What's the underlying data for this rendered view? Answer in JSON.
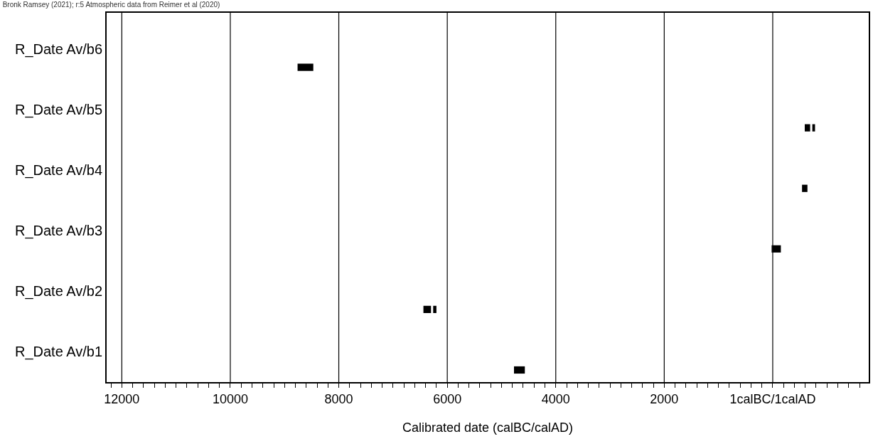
{
  "chart_data": {
    "type": "bar",
    "orientation": "horizontal",
    "title": "Bronk Ramsey (2021); r:5 Atmospheric data from Reimer et al (2020)",
    "xlabel": "Calibrated date (calBC/calAD)",
    "categories": [
      "R_Date Av/b6",
      "R_Date Av/b5",
      "R_Date Av/b4",
      "R_Date Av/b3",
      "R_Date Av/b2",
      "R_Date Av/b1"
    ],
    "series": [
      {
        "color": "#000000",
        "base": [
          8470,
          -690,
          -640,
          -150,
          6300,
          4570
        ],
        "values": [
          290,
          100,
          100,
          170,
          140,
          200
        ]
      },
      {
        "color": "#000000",
        "base": [
          null,
          -780,
          null,
          null,
          6200,
          null
        ],
        "values": [
          null,
          50,
          null,
          null,
          60,
          null
        ]
      }
    ],
    "xlim": [
      12280,
      -1770
    ],
    "xticks": [
      12000,
      10000,
      8000,
      6000,
      4000,
      2000,
      {
        "value": 0,
        "label": "1calBC/1calAD"
      },
      {
        "value": 12200,
        "label": null
      },
      {
        "value": 11800,
        "label": null
      },
      {
        "value": 11600,
        "label": null
      },
      {
        "value": 11400,
        "label": null
      },
      {
        "value": 11200,
        "label": null
      },
      {
        "value": 11000,
        "label": null
      },
      {
        "value": 10800,
        "label": null
      },
      {
        "value": 10600,
        "label": null
      },
      {
        "value": 10400,
        "label": null
      },
      {
        "value": 10200,
        "label": null
      },
      {
        "value": 9800,
        "label": null
      },
      {
        "value": 9600,
        "label": null
      },
      {
        "value": 9400,
        "label": null
      },
      {
        "value": 9200,
        "label": null
      },
      {
        "value": 9000,
        "label": null
      },
      {
        "value": 8800,
        "label": null
      },
      {
        "value": 8600,
        "label": null
      },
      {
        "value": 8400,
        "label": null
      },
      {
        "value": 8200,
        "label": null
      },
      {
        "value": 7800,
        "label": null
      },
      {
        "value": 7600,
        "label": null
      },
      {
        "value": 7400,
        "label": null
      },
      {
        "value": 7200,
        "label": null
      },
      {
        "value": 7000,
        "label": null
      },
      {
        "value": 6800,
        "label": null
      },
      {
        "value": 6600,
        "label": null
      },
      {
        "value": 6400,
        "label": null
      },
      {
        "value": 6200,
        "label": null
      },
      {
        "value": 5800,
        "label": null
      },
      {
        "value": 5600,
        "label": null
      },
      {
        "value": 5400,
        "label": null
      },
      {
        "value": 5200,
        "label": null
      },
      {
        "value": 5000,
        "label": null
      },
      {
        "value": 4800,
        "label": null
      },
      {
        "value": 4600,
        "label": null
      },
      {
        "value": 4400,
        "label": null
      },
      {
        "value": 4200,
        "label": null
      },
      {
        "value": 3800,
        "label": null
      },
      {
        "value": 3600,
        "label": null
      },
      {
        "value": 3400,
        "label": null
      },
      {
        "value": 3200,
        "label": null
      },
      {
        "value": 3000,
        "label": null
      },
      {
        "value": 2800,
        "label": null
      },
      {
        "value": 2600,
        "label": null
      },
      {
        "value": 2400,
        "label": null
      },
      {
        "value": 2200,
        "label": null
      },
      {
        "value": 1800,
        "label": null
      },
      {
        "value": 1600,
        "label": null
      },
      {
        "value": 1400,
        "label": null
      },
      {
        "value": 1200,
        "label": null
      },
      {
        "value": 1000,
        "label": null
      },
      {
        "value": 800,
        "label": null
      },
      {
        "value": 600,
        "label": null
      },
      {
        "value": 400,
        "label": null
      },
      {
        "value": 200,
        "label": null
      },
      {
        "value": -200,
        "label": null
      },
      {
        "value": -400,
        "label": null
      },
      {
        "value": -600,
        "label": null
      },
      {
        "value": -800,
        "label": null
      },
      {
        "value": -1000,
        "label": null
      },
      {
        "value": -1200,
        "label": null
      },
      {
        "value": -1400,
        "label": null
      },
      {
        "value": -1600,
        "label": null
      }
    ],
    "grid": "x"
  }
}
